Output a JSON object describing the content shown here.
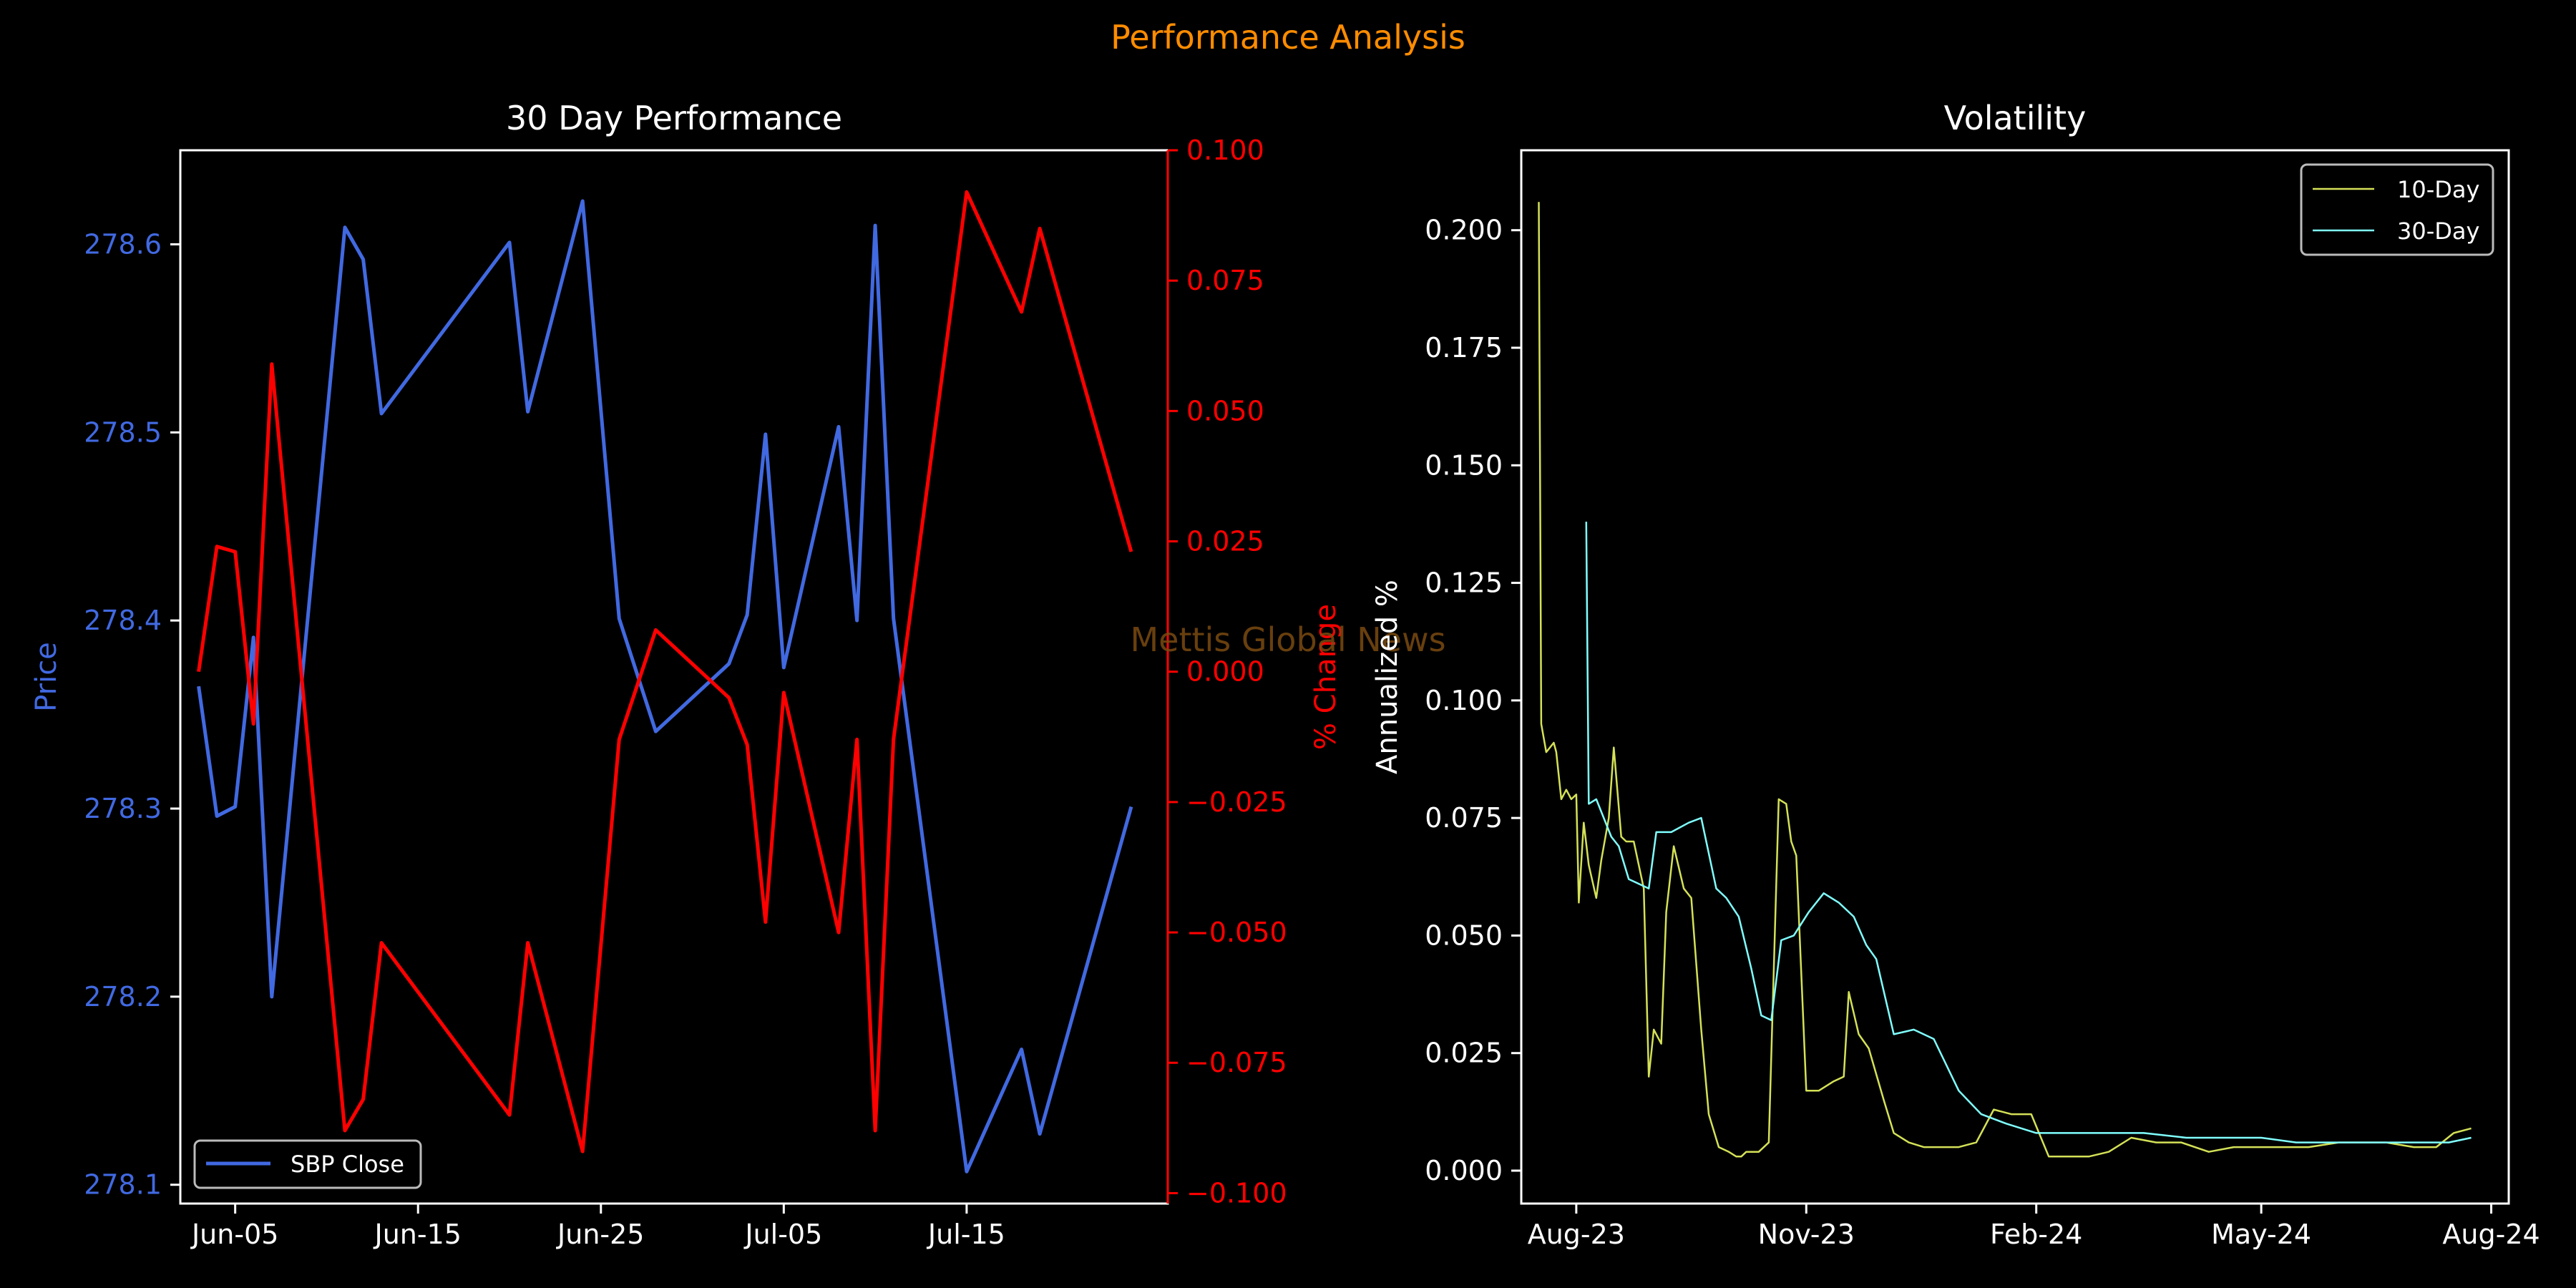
{
  "figure": {
    "suptitle": "Performance Analysis",
    "suptitle_color": "#ff8c00",
    "background": "#000000",
    "watermark": "Mettis Global News",
    "watermark_color": "#7a4a10"
  },
  "chart_data": [
    {
      "type": "line",
      "title": "30 Day Performance",
      "xlabel": "",
      "x_ticks": [
        "Jun-05",
        "Jun-15",
        "Jun-25",
        "Jul-05",
        "Jul-15"
      ],
      "x_range": [
        "2024-06-02",
        "2024-07-26"
      ],
      "left_axis": {
        "label": "Price",
        "color": "#4169e1",
        "ylim": [
          278.09,
          278.65
        ],
        "ticks": [
          "278.1",
          "278.2",
          "278.3",
          "278.4",
          "278.5",
          "278.6"
        ]
      },
      "right_axis": {
        "label": "% Change",
        "color": "#ff0000",
        "ylim": [
          -0.102,
          0.1
        ],
        "ticks": [
          "0.100",
          "0.075",
          "0.050",
          "0.025",
          "0.000",
          "−0.025",
          "−0.050",
          "−0.075",
          "−0.100"
        ]
      },
      "legend": {
        "position": "lower-left",
        "entries": [
          "SBP Close"
        ]
      },
      "series": [
        {
          "name": "SBP Close",
          "axis": "left",
          "color": "#4169e1",
          "x": [
            "2024-06-03",
            "2024-06-04",
            "2024-06-05",
            "2024-06-06",
            "2024-06-07",
            "2024-06-11",
            "2024-06-12",
            "2024-06-13",
            "2024-06-20",
            "2024-06-21",
            "2024-06-24",
            "2024-06-26",
            "2024-06-28",
            "2024-07-02",
            "2024-07-03",
            "2024-07-04",
            "2024-07-05",
            "2024-07-08",
            "2024-07-09",
            "2024-07-10",
            "2024-07-11",
            "2024-07-15",
            "2024-07-18",
            "2024-07-19",
            "2024-07-24"
          ],
          "values": [
            278.365,
            278.296,
            278.301,
            278.391,
            278.2,
            278.609,
            278.592,
            278.51,
            278.601,
            278.511,
            278.623,
            278.401,
            278.341,
            278.377,
            278.403,
            278.499,
            278.375,
            278.503,
            278.4,
            278.61,
            278.401,
            278.107,
            278.172,
            278.127,
            278.301
          ]
        },
        {
          "name": "",
          "axis": "right",
          "color": "#ff0000",
          "x": [
            "2024-06-03",
            "2024-06-04",
            "2024-06-05",
            "2024-06-06",
            "2024-06-07",
            "2024-06-11",
            "2024-06-12",
            "2024-06-13",
            "2024-06-20",
            "2024-06-21",
            "2024-06-24",
            "2024-06-26",
            "2024-06-28",
            "2024-07-02",
            "2024-07-03",
            "2024-07-04",
            "2024-07-05",
            "2024-07-08",
            "2024-07-09",
            "2024-07-10",
            "2024-07-11",
            "2024-07-15",
            "2024-07-18",
            "2024-07-19",
            "2024-07-24"
          ],
          "values": [
            0.0,
            0.024,
            0.023,
            -0.01,
            0.059,
            -0.088,
            -0.082,
            -0.052,
            -0.085,
            -0.052,
            -0.092,
            -0.013,
            0.008,
            -0.005,
            -0.014,
            -0.048,
            -0.004,
            -0.05,
            -0.013,
            -0.088,
            -0.013,
            0.092,
            0.069,
            0.085,
            0.023
          ]
        }
      ]
    },
    {
      "type": "line",
      "title": "Volatility",
      "xlabel": "",
      "ylabel": "Annualized %",
      "x_ticks": [
        "Aug-23",
        "Nov-23",
        "Feb-24",
        "May-24",
        "Aug-24"
      ],
      "x_ticks_dates": [
        "2023-08-01",
        "2023-11-01",
        "2024-02-01",
        "2024-05-01",
        "2024-08-01"
      ],
      "x_range": [
        "2023-07-10",
        "2024-08-08"
      ],
      "ylim": [
        -0.007,
        0.217
      ],
      "y_ticks": [
        "0.000",
        "0.025",
        "0.050",
        "0.075",
        "0.100",
        "0.125",
        "0.150",
        "0.175",
        "0.200"
      ],
      "legend": {
        "position": "upper-right",
        "entries": [
          "10-Day",
          "30-Day"
        ]
      },
      "series": [
        {
          "name": "10-Day",
          "color": "#d4e157",
          "x": [
            "2023-07-17",
            "2023-07-18",
            "2023-07-20",
            "2023-07-23",
            "2023-07-24",
            "2023-07-26",
            "2023-07-28",
            "2023-07-30",
            "2023-08-01",
            "2023-08-02",
            "2023-08-04",
            "2023-08-06",
            "2023-08-09",
            "2023-08-11",
            "2023-08-14",
            "2023-08-16",
            "2023-08-19",
            "2023-08-21",
            "2023-08-24",
            "2023-08-28",
            "2023-08-30",
            "2023-09-01",
            "2023-09-04",
            "2023-09-06",
            "2023-09-09",
            "2023-09-13",
            "2023-09-16",
            "2023-09-20",
            "2023-09-23",
            "2023-09-27",
            "2023-10-01",
            "2023-10-04",
            "2023-10-06",
            "2023-10-08",
            "2023-10-13",
            "2023-10-17",
            "2023-10-21",
            "2023-10-24",
            "2023-10-26",
            "2023-10-28",
            "2023-11-01",
            "2023-11-06",
            "2023-11-12",
            "2023-11-16",
            "2023-11-18",
            "2023-11-22",
            "2023-11-26",
            "2023-12-02",
            "2023-12-06",
            "2023-12-12",
            "2023-12-18",
            "2023-12-24",
            "2024-01-01",
            "2024-01-08",
            "2024-01-15",
            "2024-01-22",
            "2024-01-30",
            "2024-02-06",
            "2024-02-14",
            "2024-02-22",
            "2024-03-01",
            "2024-03-10",
            "2024-03-20",
            "2024-03-30",
            "2024-04-10",
            "2024-04-20",
            "2024-05-01",
            "2024-05-10",
            "2024-05-20",
            "2024-06-01",
            "2024-06-10",
            "2024-06-20",
            "2024-07-01",
            "2024-07-10",
            "2024-07-17",
            "2024-07-24"
          ],
          "values": [
            0.206,
            0.095,
            0.089,
            0.091,
            0.089,
            0.079,
            0.081,
            0.079,
            0.08,
            0.057,
            0.074,
            0.065,
            0.058,
            0.066,
            0.075,
            0.09,
            0.071,
            0.07,
            0.07,
            0.06,
            0.02,
            0.03,
            0.027,
            0.055,
            0.069,
            0.06,
            0.058,
            0.03,
            0.012,
            0.005,
            0.004,
            0.003,
            0.003,
            0.004,
            0.004,
            0.006,
            0.079,
            0.078,
            0.07,
            0.067,
            0.017,
            0.017,
            0.019,
            0.02,
            0.038,
            0.029,
            0.026,
            0.015,
            0.008,
            0.006,
            0.005,
            0.005,
            0.005,
            0.006,
            0.013,
            0.012,
            0.012,
            0.003,
            0.003,
            0.003,
            0.004,
            0.007,
            0.006,
            0.006,
            0.004,
            0.005,
            0.005,
            0.005,
            0.005,
            0.006,
            0.006,
            0.006,
            0.005,
            0.005,
            0.008,
            0.009
          ]
        },
        {
          "name": "30-Day",
          "color": "#80ffff",
          "x": [
            "2023-08-05",
            "2023-08-06",
            "2023-08-09",
            "2023-08-12",
            "2023-08-15",
            "2023-08-18",
            "2023-08-22",
            "2023-08-26",
            "2023-08-30",
            "2023-09-02",
            "2023-09-08",
            "2023-09-15",
            "2023-09-20",
            "2023-09-26",
            "2023-09-30",
            "2023-10-05",
            "2023-10-10",
            "2023-10-14",
            "2023-10-18",
            "2023-10-22",
            "2023-10-27",
            "2023-11-02",
            "2023-11-08",
            "2023-11-14",
            "2023-11-20",
            "2023-11-25",
            "2023-11-29",
            "2023-12-06",
            "2023-12-14",
            "2023-12-22",
            "2024-01-01",
            "2024-01-10",
            "2024-01-20",
            "2024-02-01",
            "2024-02-15",
            "2024-03-01",
            "2024-03-15",
            "2024-04-01",
            "2024-04-15",
            "2024-05-01",
            "2024-05-15",
            "2024-06-01",
            "2024-06-15",
            "2024-07-01",
            "2024-07-15",
            "2024-07-24"
          ],
          "values": [
            0.138,
            0.078,
            0.079,
            0.075,
            0.071,
            0.069,
            0.062,
            0.061,
            0.06,
            0.072,
            0.072,
            0.074,
            0.075,
            0.06,
            0.058,
            0.054,
            0.043,
            0.033,
            0.032,
            0.049,
            0.05,
            0.055,
            0.059,
            0.057,
            0.054,
            0.048,
            0.045,
            0.029,
            0.03,
            0.028,
            0.017,
            0.012,
            0.01,
            0.008,
            0.008,
            0.008,
            0.008,
            0.007,
            0.007,
            0.007,
            0.006,
            0.006,
            0.006,
            0.006,
            0.006,
            0.007
          ]
        }
      ]
    }
  ]
}
